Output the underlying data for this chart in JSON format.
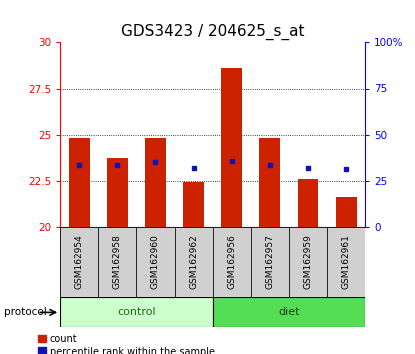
{
  "title": "GDS3423 / 204625_s_at",
  "samples": [
    "GSM162954",
    "GSM162958",
    "GSM162960",
    "GSM162962",
    "GSM162956",
    "GSM162957",
    "GSM162959",
    "GSM162961"
  ],
  "red_values": [
    24.8,
    23.7,
    24.8,
    22.4,
    28.6,
    24.8,
    22.6,
    21.6
  ],
  "blue_values_left": [
    23.35,
    23.35,
    23.5,
    23.2,
    23.55,
    23.35,
    23.2,
    23.15
  ],
  "bar_bottom": 20.0,
  "ylim_left": [
    20,
    30
  ],
  "ylim_right": [
    0,
    100
  ],
  "yticks_left": [
    20,
    22.5,
    25,
    27.5,
    30
  ],
  "yticks_right": [
    0,
    25,
    50,
    75,
    100
  ],
  "ytick_labels_left": [
    "20",
    "22.5",
    "25",
    "27.5",
    "30"
  ],
  "ytick_labels_right": [
    "0",
    "25",
    "50",
    "75",
    "100%"
  ],
  "control_n": 4,
  "diet_n": 4,
  "control_color": "#ccffcc",
  "diet_color": "#55dd55",
  "bar_color": "#cc2200",
  "blue_color": "#1111bb",
  "protocol_label": "protocol",
  "control_label": "control",
  "diet_label": "diet",
  "legend_count": "count",
  "legend_pct": "percentile rank within the sample",
  "title_fontsize": 11,
  "tick_label_fontsize": 7.5,
  "sample_label_fontsize": 6.5,
  "bar_width": 0.55,
  "bg_color": "#ffffff",
  "gray_color": "#d0d0d0"
}
